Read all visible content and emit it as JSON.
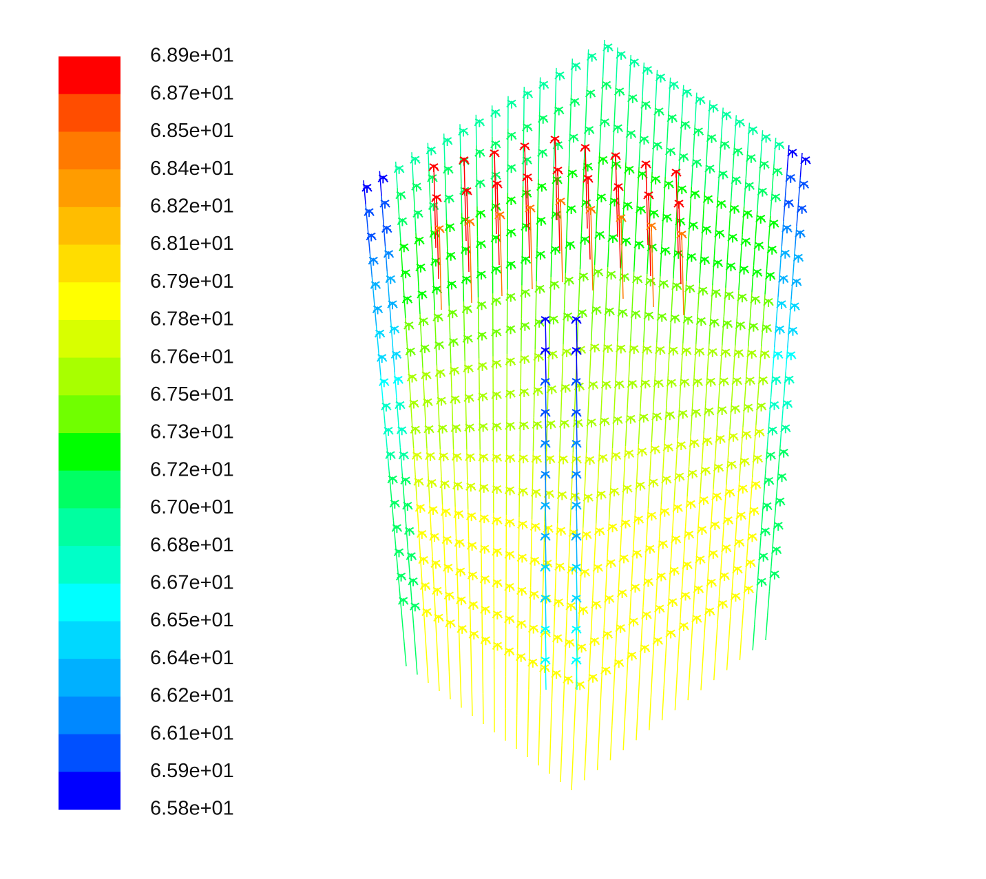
{
  "colorbar": {
    "labels": [
      "6.89e+01",
      "6.87e+01",
      "6.85e+01",
      "6.84e+01",
      "6.82e+01",
      "6.81e+01",
      "6.79e+01",
      "6.78e+01",
      "6.76e+01",
      "6.75e+01",
      "6.73e+01",
      "6.72e+01",
      "6.70e+01",
      "6.68e+01",
      "6.67e+01",
      "6.65e+01",
      "6.64e+01",
      "6.62e+01",
      "6.61e+01",
      "6.59e+01",
      "6.58e+01"
    ],
    "colors": [
      "#ff0000",
      "#ff4d00",
      "#ff7a00",
      "#ff9c00",
      "#ffbd00",
      "#ffdd00",
      "#ffff00",
      "#d8ff00",
      "#a8ff00",
      "#70ff00",
      "#00ff00",
      "#00ff64",
      "#00ffa0",
      "#00ffc8",
      "#00ffff",
      "#00d8ff",
      "#00b0ff",
      "#0088ff",
      "#0050ff",
      "#0000ff"
    ]
  }
}
